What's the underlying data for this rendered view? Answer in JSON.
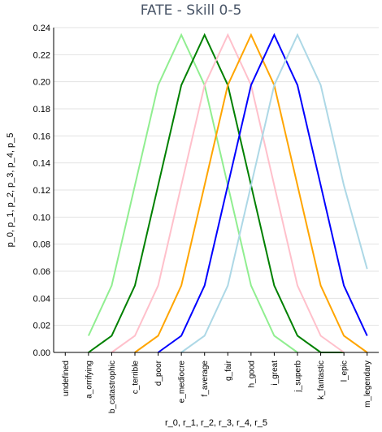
{
  "chart_data": {
    "type": "line",
    "title": "FATE - Skill 0-5",
    "xlabel": "r_0, r_1, r_2, r_3, r_4, r_5",
    "ylabel": "p_0, p_1, p_2, p_3, p_4, p_5",
    "ylim": [
      0,
      0.24
    ],
    "yticks": [
      "0.00",
      "0.02",
      "0.04",
      "0.06",
      "0.08",
      "0.10",
      "0.12",
      "0.14",
      "0.16",
      "0.18",
      "0.20",
      "0.22",
      "0.24"
    ],
    "grid": true,
    "categories": [
      "undefined",
      "a_orrifying",
      "b_catastrophic",
      "c_terrible",
      "d_poor",
      "e_mediocre",
      "f_average",
      "g_fair",
      "h_good",
      "i_great",
      "j_superb",
      "k_fantastic",
      "l_epic",
      "m_legendary"
    ],
    "series": [
      {
        "color": "#90ee90",
        "values": [
          null,
          0.0123,
          0.0494,
          0.1235,
          0.1975,
          0.2346,
          0.1975,
          0.1235,
          0.0494,
          0.0123,
          0,
          null,
          null,
          null
        ]
      },
      {
        "color": "#008000",
        "values": [
          null,
          0,
          0.0123,
          0.0494,
          0.1235,
          0.1975,
          0.2346,
          0.1975,
          0.1235,
          0.0494,
          0.0123,
          0,
          0,
          null
        ]
      },
      {
        "color": "#ffc0cb",
        "values": [
          null,
          null,
          0,
          0.0123,
          0.0494,
          0.1235,
          0.1975,
          0.2346,
          0.1975,
          0.1235,
          0.0494,
          0.0123,
          0,
          null
        ]
      },
      {
        "color": "#ffa500",
        "values": [
          null,
          null,
          null,
          0,
          0.0123,
          0.0494,
          0.1235,
          0.1975,
          0.2346,
          0.1975,
          0.1235,
          0.0494,
          0.0123,
          0
        ]
      },
      {
        "color": "#0000ff",
        "values": [
          null,
          null,
          null,
          null,
          0,
          0.0123,
          0.0494,
          0.1235,
          0.1975,
          0.2346,
          0.1975,
          0.1235,
          0.0494,
          0.0123
        ]
      },
      {
        "color": "#add8e6",
        "values": [
          null,
          null,
          null,
          null,
          null,
          0,
          0.0123,
          0.0494,
          0.1235,
          0.1975,
          0.2346,
          0.1975,
          0.1235,
          0.0617
        ]
      }
    ]
  }
}
